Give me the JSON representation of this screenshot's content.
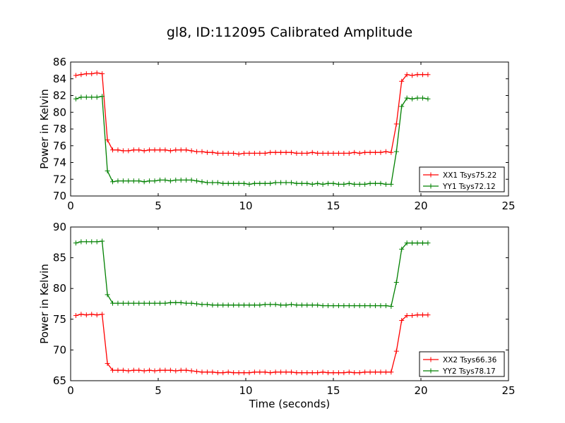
{
  "title": "gl8, ID:112095 Calibrated Amplitude",
  "chart_data": [
    {
      "type": "line",
      "xlabel": "",
      "ylabel": "Power in Kelvin",
      "xlim": [
        0,
        25
      ],
      "ylim": [
        70,
        86
      ],
      "xticks": [
        0,
        5,
        10,
        15,
        20,
        25
      ],
      "yticks": [
        70,
        72,
        74,
        76,
        78,
        80,
        82,
        84,
        86
      ],
      "grid": false,
      "legend_position": "bottom-right",
      "x": [
        0.3,
        0.6,
        0.9,
        1.2,
        1.5,
        1.8,
        2.1,
        2.4,
        2.7,
        3.0,
        3.3,
        3.6,
        3.9,
        4.2,
        4.5,
        4.8,
        5.1,
        5.4,
        5.7,
        6.0,
        6.3,
        6.6,
        6.9,
        7.2,
        7.5,
        7.8,
        8.1,
        8.4,
        8.7,
        9.0,
        9.3,
        9.6,
        9.9,
        10.2,
        10.5,
        10.8,
        11.1,
        11.4,
        11.7,
        12.0,
        12.3,
        12.6,
        12.9,
        13.2,
        13.5,
        13.8,
        14.1,
        14.4,
        14.7,
        15.0,
        15.3,
        15.6,
        15.9,
        16.2,
        16.5,
        16.8,
        17.1,
        17.4,
        17.7,
        18.0,
        18.3,
        18.6,
        18.9,
        19.2,
        19.5,
        19.8,
        20.1,
        20.4
      ],
      "series": [
        {
          "name": "XX1 Tsys75.22",
          "color": "#ff0000",
          "values": [
            84.4,
            84.5,
            84.6,
            84.6,
            84.7,
            84.6,
            76.7,
            75.5,
            75.5,
            75.4,
            75.4,
            75.5,
            75.5,
            75.4,
            75.5,
            75.5,
            75.5,
            75.5,
            75.4,
            75.5,
            75.5,
            75.5,
            75.4,
            75.3,
            75.3,
            75.2,
            75.2,
            75.1,
            75.1,
            75.1,
            75.1,
            75.0,
            75.1,
            75.1,
            75.1,
            75.1,
            75.1,
            75.2,
            75.2,
            75.2,
            75.2,
            75.2,
            75.1,
            75.1,
            75.1,
            75.2,
            75.1,
            75.1,
            75.1,
            75.1,
            75.1,
            75.1,
            75.1,
            75.2,
            75.1,
            75.2,
            75.2,
            75.2,
            75.2,
            75.3,
            75.2,
            78.6,
            83.7,
            84.5,
            84.4,
            84.5,
            84.5,
            84.5
          ]
        },
        {
          "name": "YY1 Tsys72.12",
          "color": "#008000",
          "values": [
            81.6,
            81.8,
            81.8,
            81.8,
            81.8,
            81.9,
            73.0,
            71.7,
            71.8,
            71.8,
            71.8,
            71.8,
            71.8,
            71.7,
            71.8,
            71.8,
            71.9,
            71.9,
            71.8,
            71.9,
            71.9,
            71.9,
            71.9,
            71.8,
            71.7,
            71.6,
            71.6,
            71.6,
            71.5,
            71.5,
            71.5,
            71.5,
            71.5,
            71.4,
            71.5,
            71.5,
            71.5,
            71.5,
            71.6,
            71.6,
            71.6,
            71.6,
            71.5,
            71.5,
            71.5,
            71.4,
            71.5,
            71.4,
            71.5,
            71.5,
            71.4,
            71.4,
            71.5,
            71.4,
            71.4,
            71.4,
            71.5,
            71.5,
            71.5,
            71.4,
            71.4,
            75.3,
            80.7,
            81.7,
            81.6,
            81.7,
            81.7,
            81.6
          ]
        }
      ]
    },
    {
      "type": "line",
      "xlabel": "Time (seconds)",
      "ylabel": "Power in Kelvin",
      "xlim": [
        0,
        25
      ],
      "ylim": [
        65,
        90
      ],
      "xticks": [
        0,
        5,
        10,
        15,
        20,
        25
      ],
      "yticks": [
        65,
        70,
        75,
        80,
        85,
        90
      ],
      "grid": false,
      "legend_position": "bottom-right",
      "x": [
        0.3,
        0.6,
        0.9,
        1.2,
        1.5,
        1.8,
        2.1,
        2.4,
        2.7,
        3.0,
        3.3,
        3.6,
        3.9,
        4.2,
        4.5,
        4.8,
        5.1,
        5.4,
        5.7,
        6.0,
        6.3,
        6.6,
        6.9,
        7.2,
        7.5,
        7.8,
        8.1,
        8.4,
        8.7,
        9.0,
        9.3,
        9.6,
        9.9,
        10.2,
        10.5,
        10.8,
        11.1,
        11.4,
        11.7,
        12.0,
        12.3,
        12.6,
        12.9,
        13.2,
        13.5,
        13.8,
        14.1,
        14.4,
        14.7,
        15.0,
        15.3,
        15.6,
        15.9,
        16.2,
        16.5,
        16.8,
        17.1,
        17.4,
        17.7,
        18.0,
        18.3,
        18.6,
        18.9,
        19.2,
        19.5,
        19.8,
        20.1,
        20.4
      ],
      "series": [
        {
          "name": "XX2 Tsys66.36",
          "color": "#ff0000",
          "values": [
            75.6,
            75.8,
            75.7,
            75.8,
            75.7,
            75.8,
            67.8,
            66.7,
            66.7,
            66.7,
            66.6,
            66.7,
            66.7,
            66.6,
            66.7,
            66.6,
            66.7,
            66.7,
            66.7,
            66.6,
            66.7,
            66.7,
            66.6,
            66.5,
            66.4,
            66.4,
            66.4,
            66.3,
            66.3,
            66.4,
            66.3,
            66.3,
            66.3,
            66.3,
            66.4,
            66.4,
            66.4,
            66.3,
            66.4,
            66.4,
            66.4,
            66.4,
            66.3,
            66.3,
            66.3,
            66.3,
            66.3,
            66.4,
            66.3,
            66.3,
            66.3,
            66.3,
            66.4,
            66.3,
            66.3,
            66.4,
            66.4,
            66.4,
            66.4,
            66.4,
            66.4,
            69.8,
            74.8,
            75.6,
            75.6,
            75.7,
            75.7,
            75.7
          ]
        },
        {
          "name": "YY2 Tsys78.17",
          "color": "#008000",
          "values": [
            87.4,
            87.6,
            87.6,
            87.6,
            87.6,
            87.7,
            79.0,
            77.6,
            77.6,
            77.6,
            77.6,
            77.6,
            77.6,
            77.6,
            77.6,
            77.6,
            77.6,
            77.6,
            77.7,
            77.7,
            77.7,
            77.6,
            77.6,
            77.5,
            77.4,
            77.4,
            77.3,
            77.3,
            77.3,
            77.3,
            77.3,
            77.3,
            77.3,
            77.3,
            77.3,
            77.3,
            77.4,
            77.4,
            77.4,
            77.3,
            77.3,
            77.4,
            77.3,
            77.3,
            77.3,
            77.3,
            77.3,
            77.2,
            77.2,
            77.2,
            77.2,
            77.2,
            77.2,
            77.2,
            77.2,
            77.2,
            77.2,
            77.2,
            77.2,
            77.2,
            77.1,
            81.0,
            86.4,
            87.4,
            87.4,
            87.4,
            87.4,
            87.4
          ]
        }
      ]
    }
  ]
}
